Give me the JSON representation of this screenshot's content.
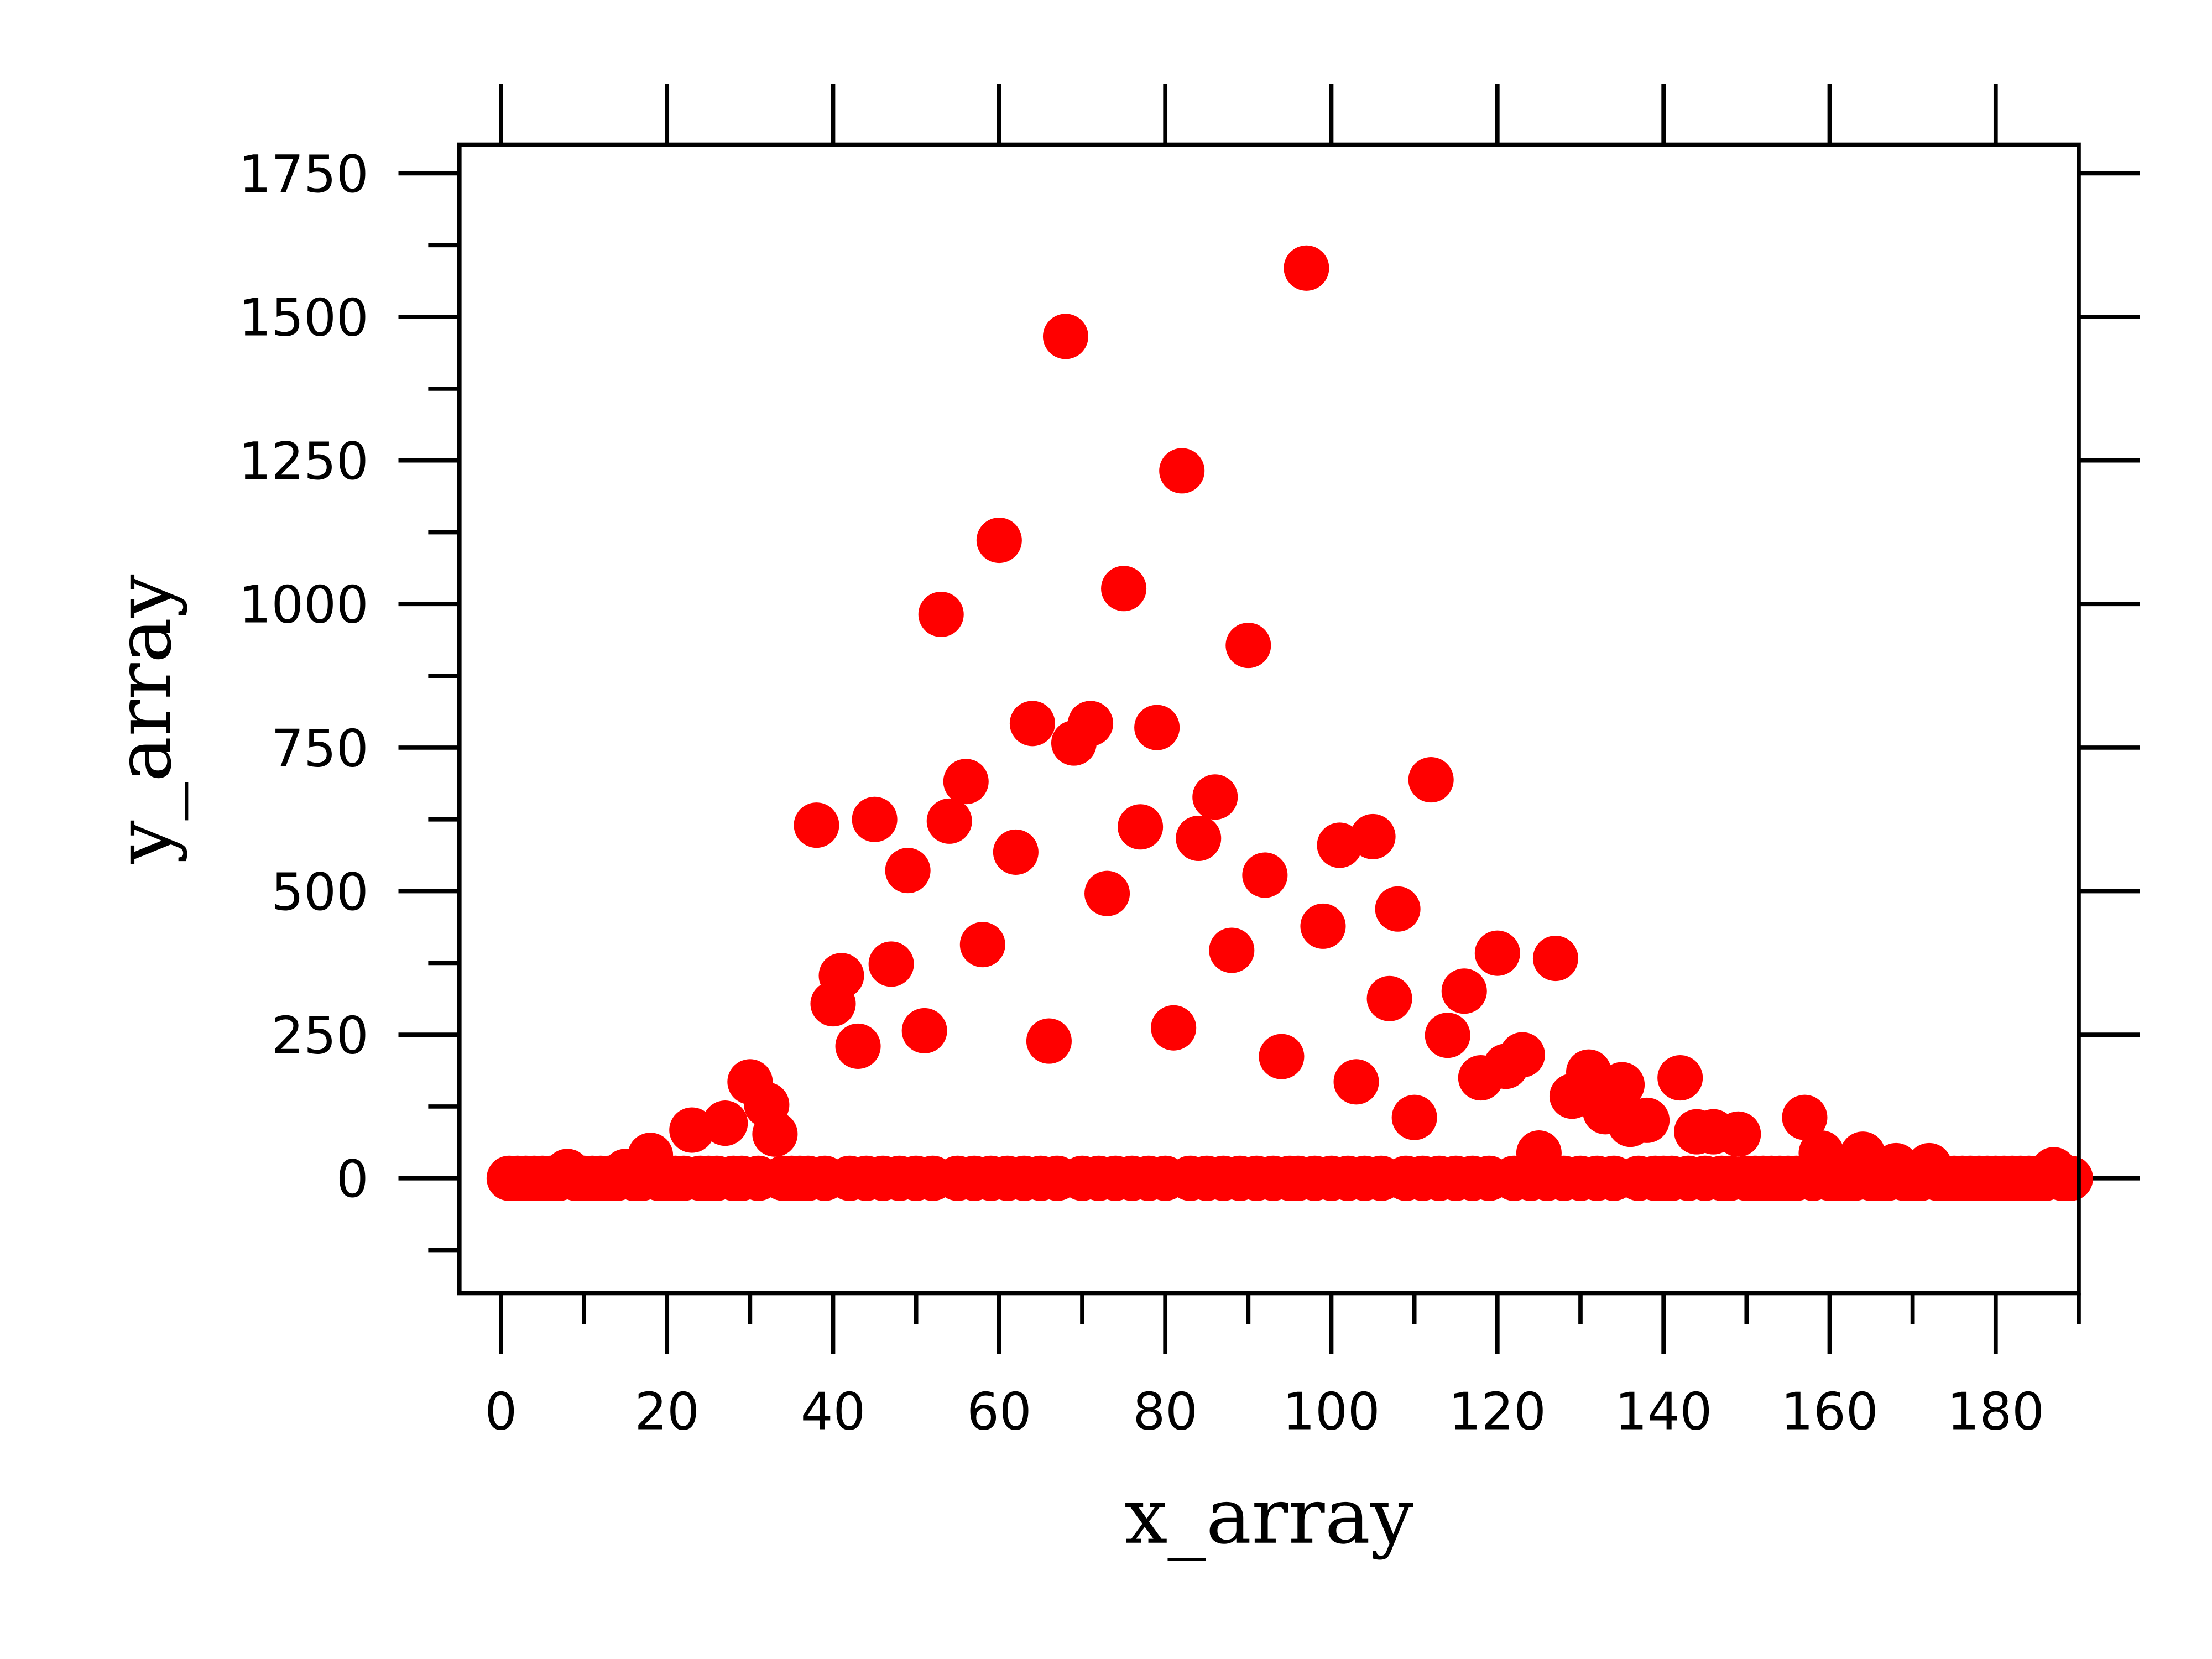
{
  "chart_data": {
    "type": "scatter",
    "xlabel": "x_array",
    "ylabel": "y_array",
    "color": "#ff0000",
    "x": [
      1,
      2,
      3,
      4,
      5,
      6,
      7,
      8,
      9,
      10,
      11,
      12,
      13,
      14,
      15,
      16,
      17,
      18,
      19,
      20,
      21,
      22,
      23,
      24,
      25,
      26,
      27,
      28,
      29,
      30,
      31,
      32,
      33,
      34,
      35,
      36,
      37,
      38,
      39,
      40,
      41,
      42,
      43,
      44,
      45,
      46,
      47,
      48,
      49,
      50,
      51,
      52,
      53,
      54,
      55,
      56,
      57,
      58,
      59,
      60,
      61,
      62,
      63,
      64,
      65,
      66,
      67,
      68,
      69,
      70,
      71,
      72,
      73,
      74,
      75,
      76,
      77,
      78,
      79,
      80,
      81,
      82,
      83,
      84,
      85,
      86,
      87,
      88,
      89,
      90,
      91,
      92,
      93,
      94,
      95,
      96,
      97,
      98,
      99,
      100,
      101,
      102,
      103,
      104,
      105,
      106,
      107,
      108,
      109,
      110,
      111,
      112,
      113,
      114,
      115,
      116,
      117,
      118,
      119,
      120,
      121,
      122,
      123,
      124,
      125,
      126,
      127,
      128,
      129,
      130,
      131,
      132,
      133,
      134,
      135,
      136,
      137,
      138,
      139,
      140,
      141,
      142,
      143,
      144,
      145,
      146,
      147,
      148,
      149,
      150,
      151,
      152,
      153,
      154,
      155,
      156,
      157,
      158,
      159,
      160,
      161,
      162,
      163,
      164,
      165,
      166,
      167,
      168,
      169,
      170,
      171,
      172,
      173,
      174,
      175,
      176,
      177,
      178,
      179,
      180,
      181,
      182,
      183,
      184,
      185,
      186,
      187,
      188,
      189
    ],
    "values": [
      0,
      0,
      0,
      0,
      0,
      0,
      0,
      12,
      0,
      0,
      0,
      0,
      0,
      0,
      12,
      0,
      0,
      40,
      0,
      0,
      0,
      0,
      84,
      0,
      0,
      0,
      96,
      0,
      0,
      168,
      0,
      128,
      77,
      0,
      0,
      0,
      0,
      615,
      0,
      304,
      353,
      0,
      230,
      0,
      625,
      0,
      373,
      0,
      536,
      0,
      257,
      0,
      982,
      622,
      0,
      691,
      0,
      407,
      0,
      1111,
      0,
      568,
      0,
      792,
      0,
      239,
      0,
      1466,
      758,
      0,
      792,
      0,
      496,
      0,
      1027,
      0,
      612,
      0,
      785,
      0,
      262,
      1232,
      0,
      592,
      0,
      664,
      0,
      397,
      0,
      928,
      0,
      528,
      0,
      212,
      0,
      0,
      1585,
      0,
      439,
      0,
      580,
      0,
      168,
      0,
      595,
      0,
      313,
      469,
      0,
      106,
      0,
      694,
      0,
      249,
      0,
      326,
      0,
      175,
      0,
      392,
      195,
      0,
      215,
      0,
      44,
      0,
      383,
      0,
      143,
      0,
      185,
      0,
      116,
      0,
      163,
      94,
      0,
      101,
      0,
      0,
      0,
      175,
      0,
      81,
      0,
      81,
      0,
      0,
      77,
      0,
      0,
      0,
      0,
      0,
      0,
      0,
      106,
      0,
      44,
      0,
      0,
      0,
      0,
      42,
      0,
      0,
      0,
      22,
      0,
      0,
      0,
      22,
      0,
      0,
      0,
      0,
      0,
      0,
      0,
      0,
      0,
      0,
      0,
      0,
      0,
      0,
      15,
      0,
      0
    ],
    "xlim": [
      -5,
      190
    ],
    "ylim": [
      -200,
      1800
    ],
    "xticks": [
      0,
      20,
      40,
      60,
      80,
      100,
      120,
      140,
      160,
      180
    ],
    "yticks": [
      0,
      250,
      500,
      750,
      1000,
      1250,
      1500,
      1750
    ]
  }
}
